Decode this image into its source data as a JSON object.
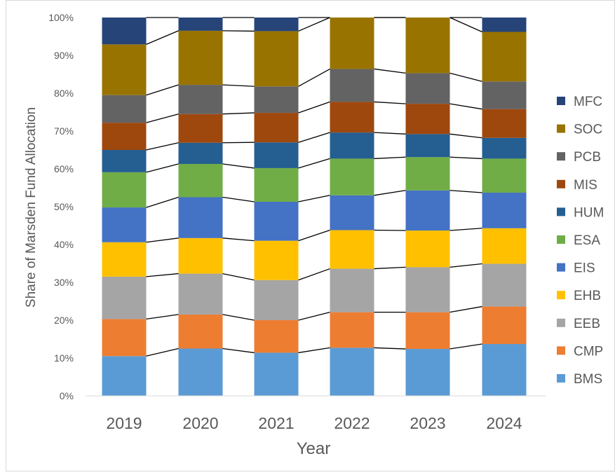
{
  "chart_data": {
    "type": "bar",
    "stacked": true,
    "normalized": true,
    "title": "",
    "xlabel": "Year",
    "ylabel": "Share of Marsden Fund Allocation",
    "ylim": [
      0,
      100
    ],
    "y_unit": "%",
    "yticks": [
      "0%",
      "10%",
      "20%",
      "30%",
      "40%",
      "50%",
      "60%",
      "70%",
      "80%",
      "90%",
      "100%"
    ],
    "categories": [
      "2019",
      "2020",
      "2021",
      "2022",
      "2023",
      "2024"
    ],
    "legend_position": "right",
    "grid": false,
    "series_connector_lines": true,
    "series": [
      {
        "name": "BMS",
        "color": "#5B9BD5",
        "values": [
          10.5,
          12.5,
          11.4,
          12.7,
          12.4,
          13.7
        ]
      },
      {
        "name": "CMP",
        "color": "#ED7D31",
        "values": [
          9.8,
          9.0,
          8.6,
          9.4,
          9.7,
          9.9
        ]
      },
      {
        "name": "EEB",
        "color": "#A5A5A5",
        "values": [
          11.2,
          10.8,
          10.6,
          11.5,
          11.9,
          11.3
        ]
      },
      {
        "name": "EHB",
        "color": "#FFC000",
        "values": [
          9.1,
          9.4,
          10.4,
          10.2,
          9.7,
          9.4
        ]
      },
      {
        "name": "EIS",
        "color": "#4472C4",
        "values": [
          9.2,
          10.8,
          10.3,
          9.2,
          10.6,
          9.4
        ]
      },
      {
        "name": "ESA",
        "color": "#70AD47",
        "values": [
          9.3,
          8.8,
          8.9,
          9.7,
          8.8,
          9.0
        ]
      },
      {
        "name": "HUM",
        "color": "#255E91",
        "values": [
          5.9,
          5.6,
          6.8,
          6.9,
          6.1,
          5.5
        ]
      },
      {
        "name": "MIS",
        "color": "#9E480E",
        "values": [
          7.2,
          7.6,
          7.8,
          8.1,
          8.0,
          7.6
        ]
      },
      {
        "name": "PCB",
        "color": "#636363",
        "values": [
          7.3,
          7.7,
          7.0,
          8.7,
          8.1,
          7.3
        ]
      },
      {
        "name": "SOC",
        "color": "#997300",
        "values": [
          13.4,
          14.3,
          14.6,
          13.6,
          14.7,
          13.1
        ]
      },
      {
        "name": "MFC",
        "color": "#264478",
        "values": [
          7.1,
          3.5,
          3.6,
          0.0,
          0.0,
          3.8
        ]
      }
    ]
  }
}
